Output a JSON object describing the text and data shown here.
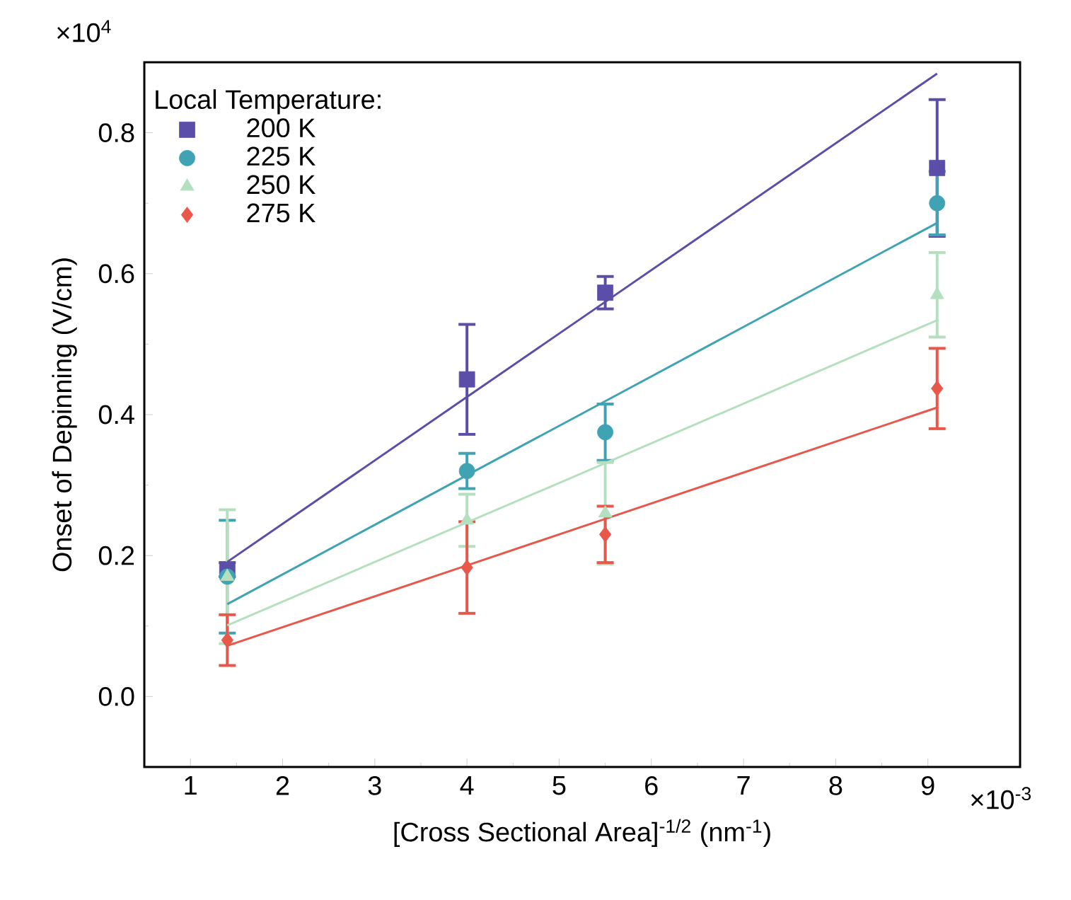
{
  "chart_data": {
    "type": "scatter",
    "xlabel": "[Cross Sectional Area]$^{-1/2}$ (nm$^{-1}$)",
    "ylabel": "Onset of Depinning (V/cm)",
    "legend_title": "Local Temperature:",
    "legend": "top left",
    "xlim": [
      0.5,
      10
    ],
    "xticks": [
      1,
      2,
      3,
      4,
      5,
      6,
      7,
      8,
      9
    ],
    "ylim": [
      -0.1,
      0.9
    ],
    "yticks": [
      {
        "value": 0,
        "label": "0.0"
      },
      {
        "value": 0.2,
        "label": "0.2"
      },
      {
        "value": 0.4,
        "label": "0.4"
      },
      {
        "value": 0.6,
        "label": "0.6"
      },
      {
        "value": 0.8,
        "label": "0.8"
      }
    ],
    "annotations": [
      "×10$^{4}$",
      "×10$^{-3}$"
    ],
    "x": [
      1.4,
      4.0,
      5.5,
      9.1
    ],
    "series": [
      {
        "name": "200 K",
        "color": "#5b4ea8",
        "marker": "square",
        "values": [
          0.18,
          0.45,
          0.573,
          0.75
        ],
        "errors": [
          0.01,
          0.078,
          0.023,
          0.097
        ]
      },
      {
        "name": "225 K",
        "color": "#3fa3b3",
        "marker": "circle",
        "values": [
          0.17,
          0.32,
          0.375,
          0.7
        ],
        "errors": [
          0.08,
          0.025,
          0.04,
          0.045
        ]
      },
      {
        "name": "250 K",
        "color": "#b5e0c0",
        "marker": "triangle",
        "values": [
          0.17,
          0.25,
          0.26,
          0.57
        ],
        "errors": [
          0.095,
          0.037,
          0.072,
          0.06
        ]
      },
      {
        "name": "275 K",
        "color": "#e8584a",
        "marker": "diamond",
        "values": [
          0.08,
          0.183,
          0.23,
          0.437
        ],
        "errors": [
          0.036,
          0.065,
          0.04,
          0.057
        ]
      },
      {
        "type": "line",
        "color": "#5b4ea8",
        "values": [
          0.191,
          0.425,
          0.56,
          0.884
        ]
      },
      {
        "type": "line",
        "color": "#3fa3b3",
        "values": [
          0.131,
          0.314,
          0.419,
          0.672
        ]
      },
      {
        "type": "line",
        "color": "#b5e0c0",
        "values": [
          0.101,
          0.247,
          0.331,
          0.534
        ]
      },
      {
        "type": "line",
        "color": "#e8584a",
        "values": [
          0.072,
          0.186,
          0.252,
          0.41
        ]
      }
    ]
  }
}
